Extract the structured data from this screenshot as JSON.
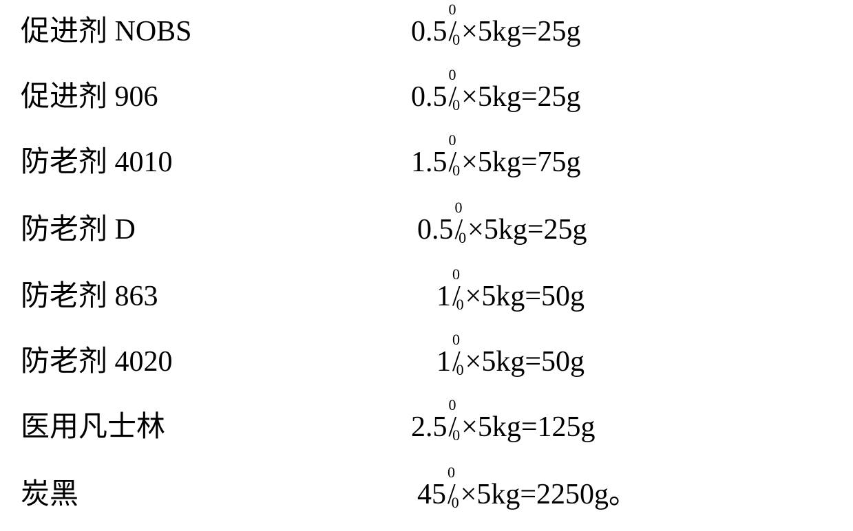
{
  "layout": {
    "rowTops": [
      25,
      120,
      215,
      313,
      410,
      505,
      600,
      698
    ],
    "formulaLefts": [
      567,
      567,
      567,
      576,
      604,
      604,
      567,
      576
    ],
    "fontSizePx": 42,
    "fracFontSizePx": 22,
    "textColorHex": "#000000",
    "backgroundHex": "#ffffff"
  },
  "rows": [
    {
      "label": "促进剂 NOBS",
      "coeff": "0.5",
      "base": "×5kg=",
      "result": "25g",
      "trailing": ""
    },
    {
      "label": "促进剂 906",
      "coeff": "0.5",
      "base": "×5kg=",
      "result": "25g",
      "trailing": ""
    },
    {
      "label": "防老剂 4010",
      "coeff": "1.5",
      "base": "×5kg=",
      "result": "75g",
      "trailing": ""
    },
    {
      "label": "防老剂 D",
      "coeff": "0.5",
      "base": "×5kg=",
      "result": "25g",
      "trailing": ""
    },
    {
      "label": "防老剂 863",
      "coeff": "1",
      "base": "×5kg=",
      "result": "50g",
      "trailing": ""
    },
    {
      "label": "防老剂 4020",
      "coeff": "1",
      "base": "×5kg=",
      "result": "50g",
      "trailing": ""
    },
    {
      "label": "医用凡士林",
      "coeff": "2.5",
      "base": "×5kg=",
      "result": "125g",
      "trailing": ""
    },
    {
      "label": "炭黑",
      "coeff": "45",
      "base": "×5kg=",
      "result": "2250g",
      "trailing": "。"
    }
  ]
}
